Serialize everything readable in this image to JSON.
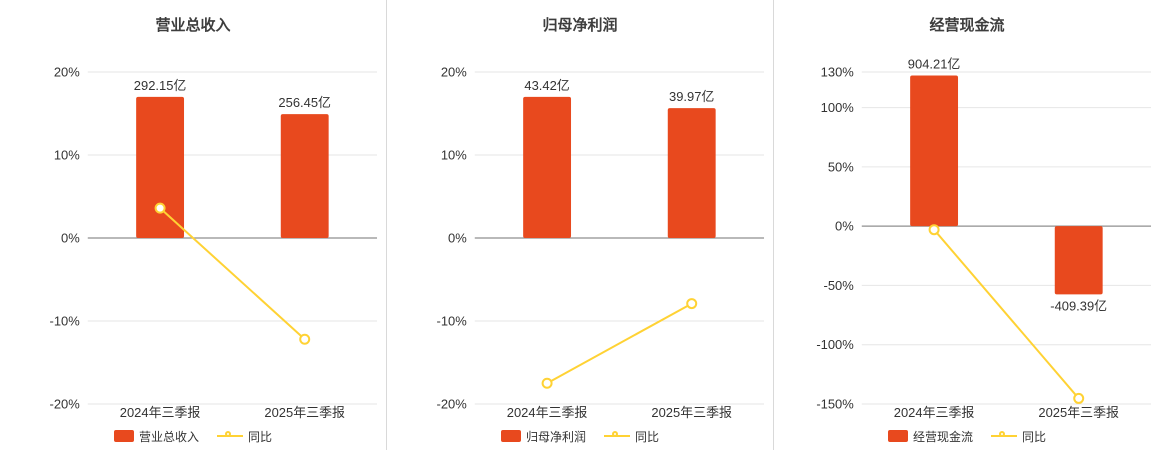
{
  "colors": {
    "bar": "#e8491e",
    "line": "#ffd234",
    "grid": "#e6e6e6",
    "zero_line": "#8f8f8f",
    "text": "#333333",
    "title": "#3d3d3d",
    "divider": "#d9d9d9",
    "background": "#ffffff"
  },
  "chart_data": [
    {
      "type": "bar",
      "title": "营业总收入",
      "categories": [
        "2024年三季报",
        "2025年三季报"
      ],
      "bar_series": {
        "name": "营业总收入",
        "values": [
          292.15,
          256.45
        ],
        "labels": [
          "292.15亿",
          "256.45亿"
        ],
        "max_bar_pct": 17
      },
      "line_series": {
        "name": "同比",
        "values_pct": [
          3.6,
          -12.2
        ]
      },
      "y_axis": {
        "min": -20,
        "max": 20,
        "ticks": [
          20,
          10,
          0,
          -10,
          -20
        ],
        "tick_suffix": "%"
      },
      "legend_position": "bottom",
      "grid": true
    },
    {
      "type": "bar",
      "title": "归母净利润",
      "categories": [
        "2024年三季报",
        "2025年三季报"
      ],
      "bar_series": {
        "name": "归母净利润",
        "values": [
          43.42,
          39.97
        ],
        "labels": [
          "43.42亿",
          "39.97亿"
        ],
        "max_bar_pct": 17
      },
      "line_series": {
        "name": "同比",
        "values_pct": [
          -17.5,
          -7.9
        ]
      },
      "y_axis": {
        "min": -20,
        "max": 20,
        "ticks": [
          20,
          10,
          0,
          -10,
          -20
        ],
        "tick_suffix": "%"
      },
      "legend_position": "bottom",
      "grid": true
    },
    {
      "type": "bar",
      "title": "经营现金流",
      "categories": [
        "2024年三季报",
        "2025年三季报"
      ],
      "bar_series": {
        "name": "经营现金流",
        "values": [
          904.21,
          -409.39
        ],
        "labels": [
          "904.21亿",
          "-409.39亿"
        ],
        "max_bar_pct": 127
      },
      "line_series": {
        "name": "同比",
        "values_pct": [
          -3.0,
          -145.3
        ]
      },
      "y_axis": {
        "min": -150,
        "max": 130,
        "ticks": [
          130,
          100,
          50,
          0,
          -50,
          -100,
          -150
        ],
        "tick_suffix": "%"
      },
      "legend_position": "bottom",
      "grid": true
    }
  ]
}
